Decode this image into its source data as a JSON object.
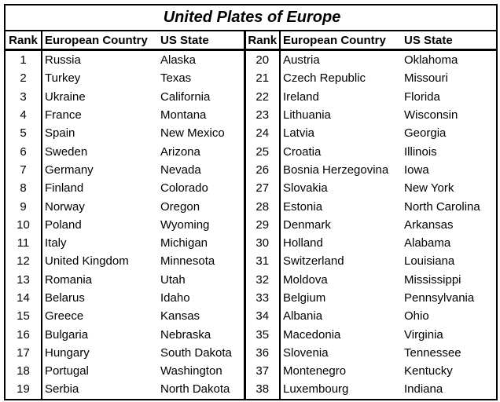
{
  "title": "United Plates of Europe",
  "table": {
    "header": [
      "Rank",
      "European Country",
      "US State",
      "Rank",
      "European Country",
      "US State"
    ],
    "rows": [
      [
        1,
        "Russia",
        "Alaska",
        20,
        "Austria",
        "Oklahoma"
      ],
      [
        2,
        "Turkey",
        "Texas",
        21,
        "Czech Republic",
        "Missouri"
      ],
      [
        3,
        "Ukraine",
        "California",
        22,
        "Ireland",
        "Florida"
      ],
      [
        4,
        "France",
        "Montana",
        23,
        "Lithuania",
        "Wisconsin"
      ],
      [
        5,
        "Spain",
        "New Mexico",
        24,
        "Latvia",
        "Georgia"
      ],
      [
        6,
        "Sweden",
        "Arizona",
        25,
        "Croatia",
        "Illinois"
      ],
      [
        7,
        "Germany",
        "Nevada",
        26,
        "Bosnia Herzegovina",
        "Iowa"
      ],
      [
        8,
        "Finland",
        "Colorado",
        27,
        "Slovakia",
        "New York"
      ],
      [
        9,
        "Norway",
        "Oregon",
        28,
        "Estonia",
        "North Carolina"
      ],
      [
        10,
        "Poland",
        "Wyoming",
        29,
        "Denmark",
        "Arkansas"
      ],
      [
        11,
        "Italy",
        "Michigan",
        30,
        "Holland",
        "Alabama"
      ],
      [
        12,
        "United Kingdom",
        "Minnesota",
        31,
        "Switzerland",
        "Louisiana"
      ],
      [
        13,
        "Romania",
        "Utah",
        32,
        "Moldova",
        "Mississippi"
      ],
      [
        14,
        "Belarus",
        "Idaho",
        33,
        "Belgium",
        "Pennsylvania"
      ],
      [
        15,
        "Greece",
        "Kansas",
        34,
        "Albania",
        "Ohio"
      ],
      [
        16,
        "Bulgaria",
        "Nebraska",
        35,
        "Macedonia",
        "Virginia"
      ],
      [
        17,
        "Hungary",
        "South Dakota",
        36,
        "Slovenia",
        "Tennessee"
      ],
      [
        18,
        "Portugal",
        "Washington",
        37,
        "Montenegro",
        "Kentucky"
      ],
      [
        19,
        "Serbia",
        "North Dakota",
        38,
        "Luxembourg",
        "Indiana"
      ]
    ]
  }
}
